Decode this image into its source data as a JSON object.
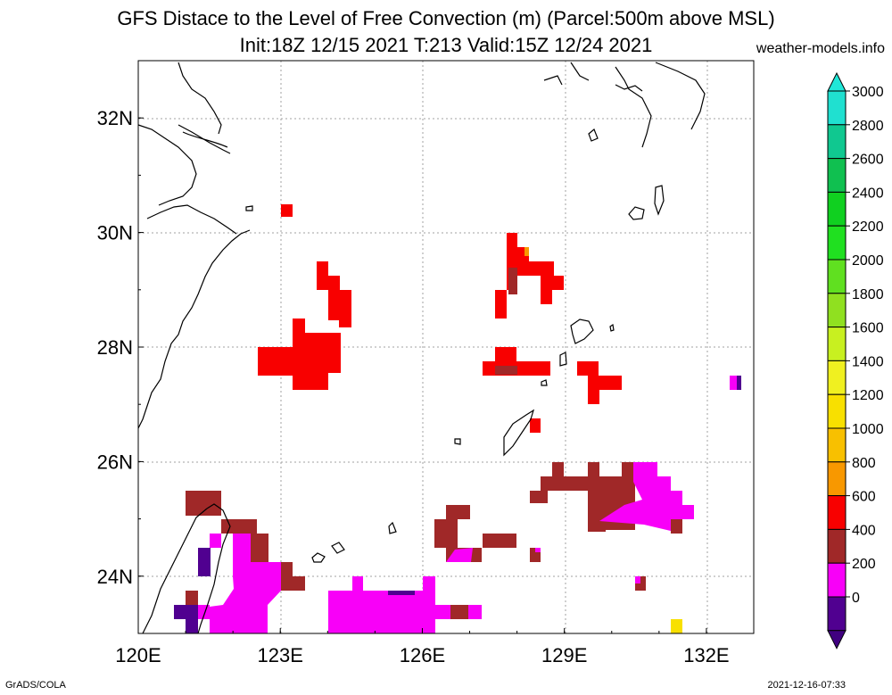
{
  "header": {
    "title_line1": "GFS Distace to the Level of Free Convection (m) (Parcel:500m above MSL)",
    "title_line2": "Init:18Z 12/15 2021 T:213 Valid:15Z 12/24 2021",
    "site": "weather-models.info"
  },
  "footer": {
    "left": "GrADS/COLA",
    "right": "2021-12-16-07:33"
  },
  "map": {
    "lat_labels": [
      "32N",
      "30N",
      "28N",
      "26N",
      "24N"
    ],
    "lon_labels": [
      "120E",
      "123E",
      "126E",
      "129E",
      "132E"
    ],
    "lat_values": [
      32,
      30,
      28,
      26,
      24
    ],
    "lon_values": [
      120,
      123,
      126,
      129,
      132
    ],
    "lon_range": [
      120,
      133
    ],
    "lat_range": [
      23,
      33
    ],
    "grid": true
  },
  "legend": {
    "labels": [
      "3000",
      "2800",
      "2600",
      "2400",
      "2200",
      "2000",
      "1800",
      "1600",
      "1400",
      "1200",
      "1000",
      "800",
      "600",
      "400",
      "200",
      "0"
    ],
    "colors_top_to_bottom": [
      "#20e0d0",
      "#10c890",
      "#10c050",
      "#10d020",
      "#20e020",
      "#60e020",
      "#90e020",
      "#c8f020",
      "#f0f020",
      "#f8e000",
      "#f8c000",
      "#f89800",
      "#f80000",
      "#a02828",
      "#f800f8",
      "#500090"
    ],
    "top_arrow_color": "#20e8d8",
    "bottom_arrow_color": "#400080"
  }
}
